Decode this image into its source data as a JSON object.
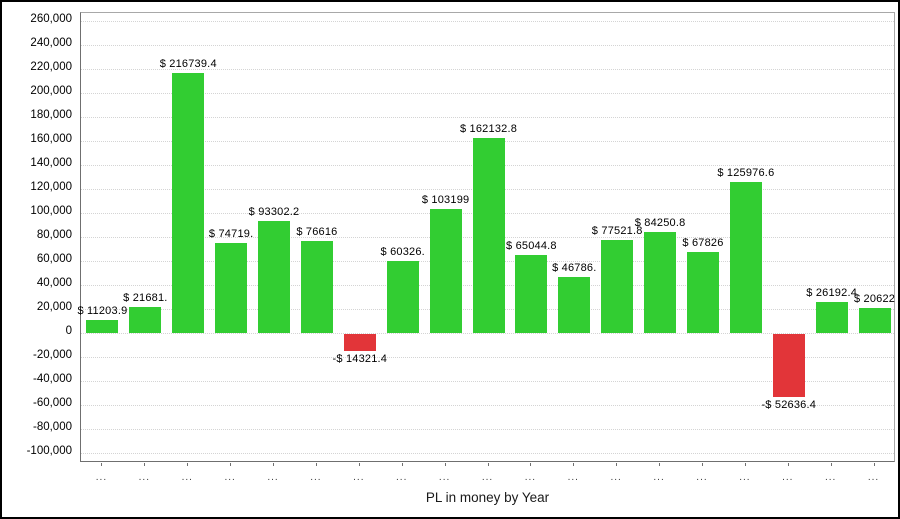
{
  "chart_data": {
    "type": "bar",
    "title": "PL in money by Year",
    "grid": true,
    "legend_position": "none",
    "x_tick_label": "...",
    "ylim": [
      -108000,
      266000
    ],
    "colors": {
      "positive": "#32cd32",
      "negative": "#e23539",
      "gridline": "#d4d4d4",
      "axis": "#6f6f6f"
    },
    "y_ticks": [
      {
        "value": 260000,
        "label": "260,000"
      },
      {
        "value": 240000,
        "label": "240,000"
      },
      {
        "value": 220000,
        "label": "220,000"
      },
      {
        "value": 200000,
        "label": "200,000"
      },
      {
        "value": 180000,
        "label": "180,000"
      },
      {
        "value": 160000,
        "label": "160,000"
      },
      {
        "value": 140000,
        "label": "140,000"
      },
      {
        "value": 120000,
        "label": "120,000"
      },
      {
        "value": 100000,
        "label": "100,000"
      },
      {
        "value": 80000,
        "label": "80,000"
      },
      {
        "value": 60000,
        "label": "60,000"
      },
      {
        "value": 40000,
        "label": "40,000"
      },
      {
        "value": 20000,
        "label": "20,000"
      },
      {
        "value": 0,
        "label": "0"
      },
      {
        "value": -20000,
        "label": "-20,000"
      },
      {
        "value": -40000,
        "label": "-40,000"
      },
      {
        "value": -60000,
        "label": "-60,000"
      },
      {
        "value": -80000,
        "label": "-80,000"
      },
      {
        "value": -100000,
        "label": "-100,000"
      }
    ],
    "bars": [
      {
        "value": 11203.9,
        "label": "$ 11203.9",
        "color": "positive"
      },
      {
        "value": 21681,
        "label": "$ 21681.",
        "color": "positive"
      },
      {
        "value": 216739.4,
        "label": "$ 216739.4",
        "color": "positive"
      },
      {
        "value": 74719,
        "label": "$ 74719.",
        "color": "positive"
      },
      {
        "value": 93302.2,
        "label": "$ 93302.2",
        "color": "positive"
      },
      {
        "value": 76616,
        "label": "$ 76616",
        "color": "positive"
      },
      {
        "value": -14321.4,
        "label": "-$ 14321.4",
        "color": "negative"
      },
      {
        "value": 60326,
        "label": "$ 60326.",
        "color": "positive"
      },
      {
        "value": 103199,
        "label": "$ 103199",
        "color": "positive"
      },
      {
        "value": 162132.8,
        "label": "$ 162132.8",
        "color": "positive"
      },
      {
        "value": 65044.8,
        "label": "$ 65044.8",
        "color": "positive"
      },
      {
        "value": 46786,
        "label": "$ 46786.",
        "color": "positive"
      },
      {
        "value": 77521.8,
        "label": "$ 77521.8",
        "color": "positive"
      },
      {
        "value": 84250.8,
        "label": "$ 84250.8",
        "color": "positive"
      },
      {
        "value": 67826,
        "label": "$ 67826",
        "color": "positive"
      },
      {
        "value": 125976.6,
        "label": "$ 125976.6",
        "color": "positive"
      },
      {
        "value": -52636.4,
        "label": "-$ 52636.4",
        "color": "negative"
      },
      {
        "value": 26192.4,
        "label": "$ 26192.4",
        "color": "positive"
      },
      {
        "value": 20622,
        "label": "$ 20622",
        "color": "positive"
      }
    ]
  }
}
